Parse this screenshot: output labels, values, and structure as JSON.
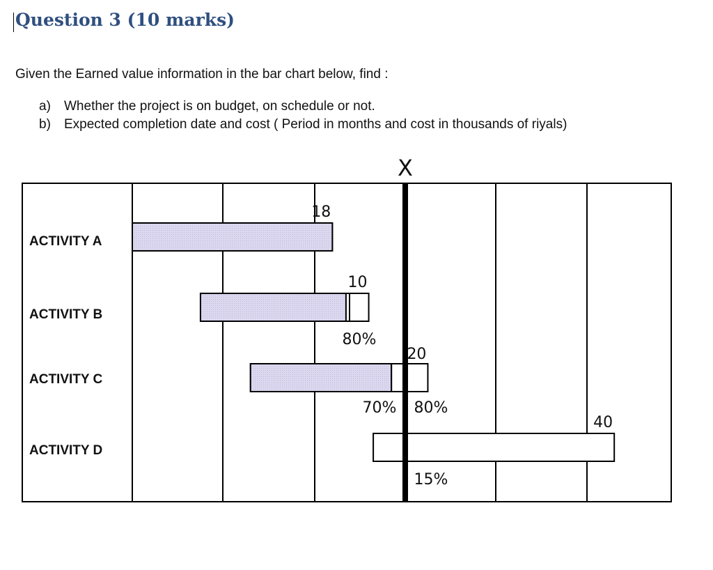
{
  "question": {
    "title": "Question 3 (10 marks)",
    "intro": "Given the Earned value information in the bar chart below, find :",
    "items": [
      {
        "mark": "a)",
        "text": "Whether the project is on budget, on schedule or not."
      },
      {
        "mark": "b)",
        "text": "Expected completion date and cost ( Period in months and cost in thousands of riyals)"
      }
    ]
  },
  "chart_data": {
    "type": "gantt",
    "status_marker": "X",
    "activities": [
      {
        "name": "ACTIVITY A",
        "start": 0,
        "end": 2.2,
        "complete_to": 2.2,
        "cost_label": "18",
        "progress_labels": []
      },
      {
        "name": "ACTIVITY B",
        "start": 0.75,
        "end": 2.6,
        "complete_to": 2.35,
        "cost_label": "10",
        "progress_labels": [
          "80%"
        ]
      },
      {
        "name": "ACTIVITY C",
        "start": 1.3,
        "end": 3.25,
        "complete_to": 2.85,
        "cost_label": "20",
        "progress_labels": [
          "70%",
          "80%"
        ]
      },
      {
        "name": "ACTIVITY D",
        "start": 2.65,
        "end": 5.3,
        "complete_to": 2.65,
        "cost_label": "40",
        "progress_labels": [
          "15%"
        ]
      }
    ],
    "status_date": 3.0,
    "periods": 6,
    "colors": {
      "completed": "#d8d4ec",
      "outline": "#000000"
    }
  }
}
